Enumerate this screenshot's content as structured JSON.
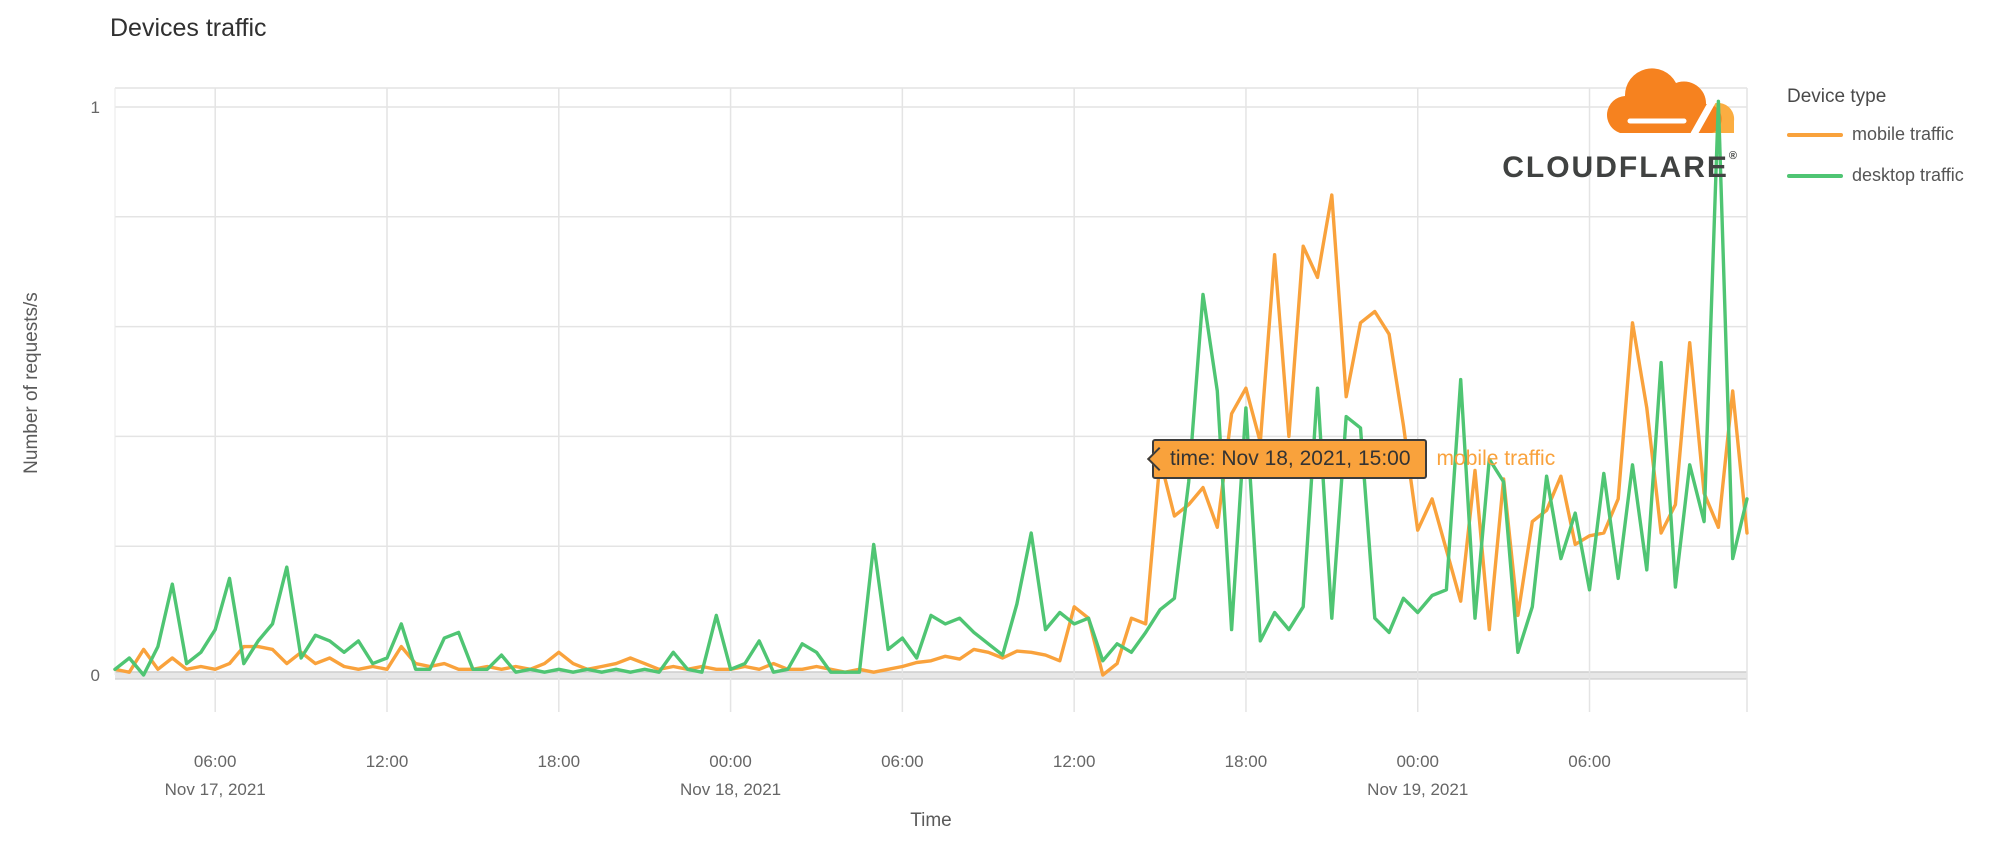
{
  "title": "Devices traffic",
  "axes": {
    "y_label": "Number of requests/s",
    "x_label": "Time"
  },
  "legend": {
    "title": "Device type",
    "items": [
      {
        "label": "mobile traffic",
        "color": "#F9A23C"
      },
      {
        "label": "desktop traffic",
        "color": "#4FC573"
      }
    ]
  },
  "tooltip": {
    "text": "time: Nov 18, 2021, 15:00",
    "series_label": "mobile traffic"
  },
  "logo": {
    "text": "CLOUDFLARE",
    "registered": "®"
  },
  "colors": {
    "mobile": "#F9A23C",
    "desktop": "#4FC573",
    "grid": "#E4E4E4",
    "zero_band": "#E7E7E7",
    "zero_edge": "#CDCDCD",
    "logo_orange": "#F6821F",
    "logo_light_orange": "#FBAD41",
    "logo_dark": "#404241"
  },
  "chart_data": {
    "type": "line",
    "title": "Devices traffic",
    "xlabel": "Time",
    "ylabel": "Number of requests/s",
    "x_unit": "hours since Nov 17, 2021 00:00",
    "t_start": 2.5,
    "t_step": 0.5,
    "ylim": [
      0,
      1.035
    ],
    "yticks_labeled": [
      {
        "v": 1,
        "label": "1"
      },
      {
        "v": 0,
        "label": "0"
      }
    ],
    "grid_values": [
      0.2,
      0.4,
      0.6,
      0.8
    ],
    "xticks": [
      {
        "t": 6,
        "label": "06:00",
        "date": "Nov 17, 2021"
      },
      {
        "t": 12,
        "label": "12:00"
      },
      {
        "t": 18,
        "label": "18:00"
      },
      {
        "t": 24,
        "label": "00:00",
        "date": "Nov 18, 2021"
      },
      {
        "t": 30,
        "label": "06:00"
      },
      {
        "t": 36,
        "label": "12:00"
      },
      {
        "t": 42,
        "label": "18:00"
      },
      {
        "t": 48,
        "label": "00:00",
        "date": "Nov 19, 2021"
      },
      {
        "t": 54,
        "label": "06:00"
      }
    ],
    "tooltip_anchor": {
      "t": 39,
      "series": "mobile traffic",
      "value": 0.38,
      "text": "time: Nov 18, 2021, 15:00"
    },
    "series": [
      {
        "name": "mobile traffic",
        "color": "#F9A23C",
        "values": [
          0.01,
          0.005,
          0.045,
          0.01,
          0.03,
          0.01,
          0.015,
          0.01,
          0.02,
          0.05,
          0.05,
          0.045,
          0.02,
          0.04,
          0.02,
          0.03,
          0.015,
          0.01,
          0.015,
          0.01,
          0.05,
          0.02,
          0.015,
          0.02,
          0.01,
          0.01,
          0.015,
          0.01,
          0.015,
          0.01,
          0.02,
          0.04,
          0.02,
          0.01,
          0.015,
          0.02,
          0.03,
          0.02,
          0.01,
          0.015,
          0.01,
          0.015,
          0.01,
          0.01,
          0.015,
          0.01,
          0.02,
          0.01,
          0.01,
          0.015,
          0.01,
          0.005,
          0.01,
          0.005,
          0.01,
          0.015,
          0.022,
          0.025,
          0.033,
          0.028,
          0.045,
          0.04,
          0.03,
          0.042,
          0.04,
          0.035,
          0.025,
          0.12,
          0.1,
          0.0,
          0.02,
          0.1,
          0.09,
          0.38,
          0.28,
          0.3,
          0.33,
          0.26,
          0.46,
          0.505,
          0.41,
          0.74,
          0.42,
          0.755,
          0.7,
          0.845,
          0.49,
          0.62,
          0.64,
          0.6,
          0.44,
          0.255,
          0.31,
          0.22,
          0.13,
          0.36,
          0.08,
          0.345,
          0.105,
          0.27,
          0.29,
          0.35,
          0.23,
          0.245,
          0.25,
          0.31,
          0.62,
          0.47,
          0.25,
          0.3,
          0.585,
          0.32,
          0.26,
          0.5,
          0.25
        ]
      },
      {
        "name": "desktop traffic",
        "color": "#4FC573",
        "values": [
          0.01,
          0.03,
          0.0,
          0.05,
          0.16,
          0.02,
          0.04,
          0.08,
          0.17,
          0.02,
          0.06,
          0.09,
          0.19,
          0.03,
          0.07,
          0.06,
          0.04,
          0.06,
          0.02,
          0.03,
          0.09,
          0.01,
          0.01,
          0.065,
          0.075,
          0.01,
          0.01,
          0.035,
          0.005,
          0.01,
          0.005,
          0.01,
          0.005,
          0.01,
          0.005,
          0.01,
          0.005,
          0.01,
          0.005,
          0.04,
          0.01,
          0.005,
          0.105,
          0.01,
          0.02,
          0.06,
          0.005,
          0.01,
          0.055,
          0.04,
          0.005,
          0.005,
          0.005,
          0.23,
          0.045,
          0.065,
          0.03,
          0.105,
          0.09,
          0.1,
          0.075,
          0.055,
          0.035,
          0.125,
          0.25,
          0.08,
          0.11,
          0.09,
          0.1,
          0.025,
          0.055,
          0.04,
          0.075,
          0.115,
          0.135,
          0.34,
          0.67,
          0.5,
          0.08,
          0.47,
          0.06,
          0.11,
          0.08,
          0.12,
          0.505,
          0.1,
          0.455,
          0.435,
          0.1,
          0.075,
          0.135,
          0.11,
          0.14,
          0.15,
          0.52,
          0.1,
          0.38,
          0.34,
          0.04,
          0.12,
          0.35,
          0.205,
          0.285,
          0.15,
          0.355,
          0.17,
          0.37,
          0.185,
          0.55,
          0.155,
          0.37,
          0.27,
          1.01,
          0.205,
          0.31
        ]
      }
    ]
  }
}
